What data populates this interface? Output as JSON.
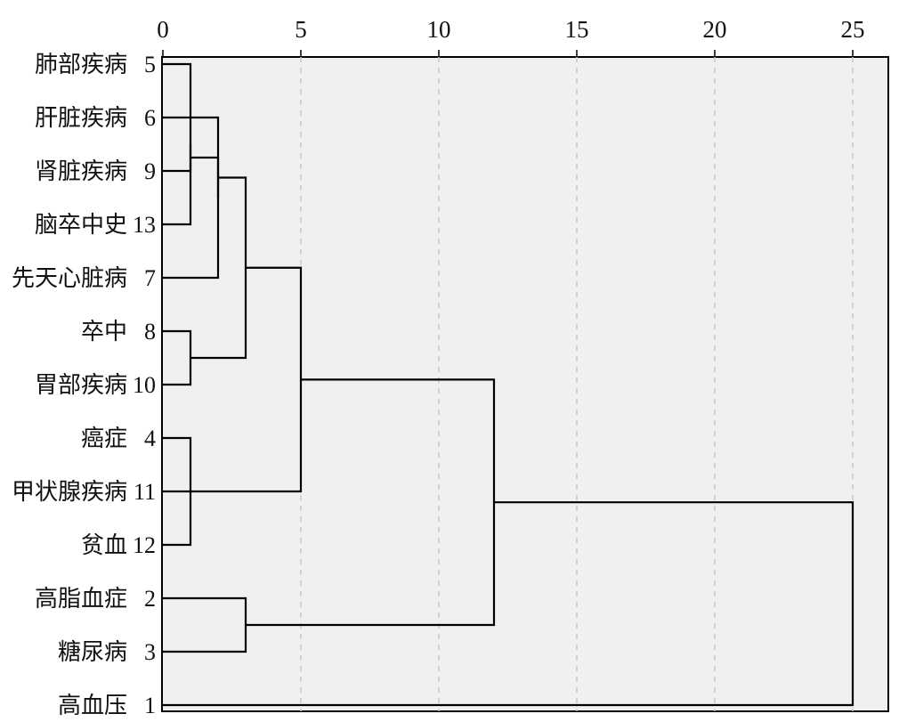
{
  "chart_data": {
    "type": "dendrogram",
    "x_ticks": [
      0,
      5,
      10,
      15,
      20,
      25
    ],
    "xlim": [
      0,
      26.5
    ],
    "grid": "vertical-dashed",
    "leaves": [
      {
        "label": "肺部疾病",
        "id": "5"
      },
      {
        "label": "肝脏疾病",
        "id": "6"
      },
      {
        "label": "肾脏疾病",
        "id": "9"
      },
      {
        "label": "脑卒中史",
        "id": "13"
      },
      {
        "label": "先天心脏病",
        "id": "7"
      },
      {
        "label": "卒中",
        "id": "8"
      },
      {
        "label": "胃部疾病",
        "id": "10"
      },
      {
        "label": "癌症",
        "id": "4"
      },
      {
        "label": "甲状腺疾病",
        "id": "11"
      },
      {
        "label": "贫血",
        "id": "12"
      },
      {
        "label": "高脂血症",
        "id": "2"
      },
      {
        "label": "糖尿病",
        "id": "3"
      },
      {
        "label": "高血压",
        "id": "1"
      }
    ],
    "merges": [
      {
        "a": "L0",
        "b": "L3",
        "height": 1
      },
      {
        "a": "L1",
        "b": "L4",
        "height": 2
      },
      {
        "a": "M0",
        "b": "L2",
        "height": 1
      },
      {
        "a": "M1",
        "b": "M2",
        "height": 2
      },
      {
        "a": "L5",
        "b": "L6",
        "height": 1
      },
      {
        "a": "M3",
        "b": "M4",
        "height": 3
      },
      {
        "a": "L7",
        "b": "L9",
        "height": 1
      },
      {
        "a": "M6",
        "b": "L8",
        "height": 1
      },
      {
        "a": "M5",
        "b": "M7",
        "height": 5
      },
      {
        "a": "L10",
        "b": "L11",
        "height": 3
      },
      {
        "a": "M8",
        "b": "M9",
        "height": 12
      },
      {
        "a": "M10",
        "b": "L12",
        "height": 25
      }
    ]
  }
}
